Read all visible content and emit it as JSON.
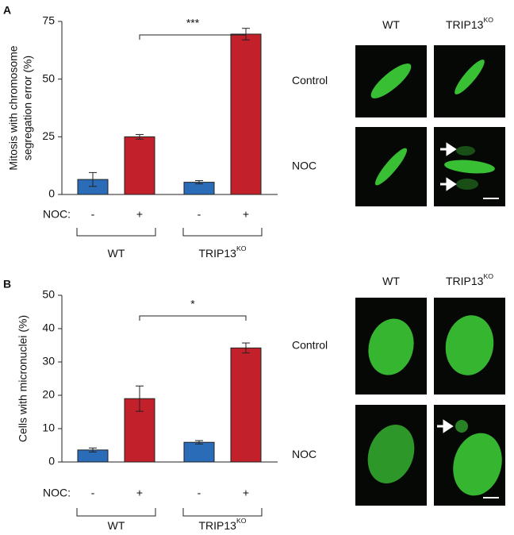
{
  "chart_data": [
    {
      "type": "bar",
      "panel": "A",
      "ylabel": [
        "Mitosis with chromosome",
        "segregation error (%)"
      ],
      "category_axis_label": "NOC:",
      "categories": [
        "-",
        "+",
        "-",
        "+"
      ],
      "values": [
        6.5,
        25,
        5.3,
        69.5
      ],
      "errors": [
        3,
        1,
        0.7,
        2.5
      ],
      "colors": [
        "#2b6cb8",
        "#c2202b",
        "#2b6cb8",
        "#c2202b"
      ],
      "groups": [
        {
          "label": "WT"
        },
        {
          "label": "TRIP13",
          "sup": "KO"
        }
      ],
      "significance": "***",
      "ylim": [
        0,
        75
      ],
      "yticks": [
        0,
        25,
        50,
        75
      ]
    },
    {
      "type": "bar",
      "panel": "B",
      "ylabel": [
        "Cells with micronuclei (%)"
      ],
      "category_axis_label": "NOC:",
      "categories": [
        "-",
        "+",
        "-",
        "+"
      ],
      "values": [
        3.6,
        19,
        5.9,
        34.2
      ],
      "errors": [
        0.6,
        3.8,
        0.5,
        1.5
      ],
      "colors": [
        "#2b6cb8",
        "#c2202b",
        "#2b6cb8",
        "#c2202b"
      ],
      "groups": [
        {
          "label": "WT"
        },
        {
          "label": "TRIP13",
          "sup": "KO"
        }
      ],
      "significance": "*",
      "ylim": [
        0,
        50
      ],
      "yticks": [
        0,
        10,
        20,
        30,
        40,
        50
      ]
    }
  ],
  "micrographs": [
    {
      "columns": [
        {
          "label": "WT"
        },
        {
          "label": "TRIP13",
          "sup": "KO"
        }
      ],
      "rows": [
        "Control",
        "NOC"
      ]
    },
    {
      "columns": [
        {
          "label": "WT"
        },
        {
          "label": "TRIP13",
          "sup": "KO"
        }
      ],
      "rows": [
        "Control",
        "NOC"
      ]
    }
  ]
}
